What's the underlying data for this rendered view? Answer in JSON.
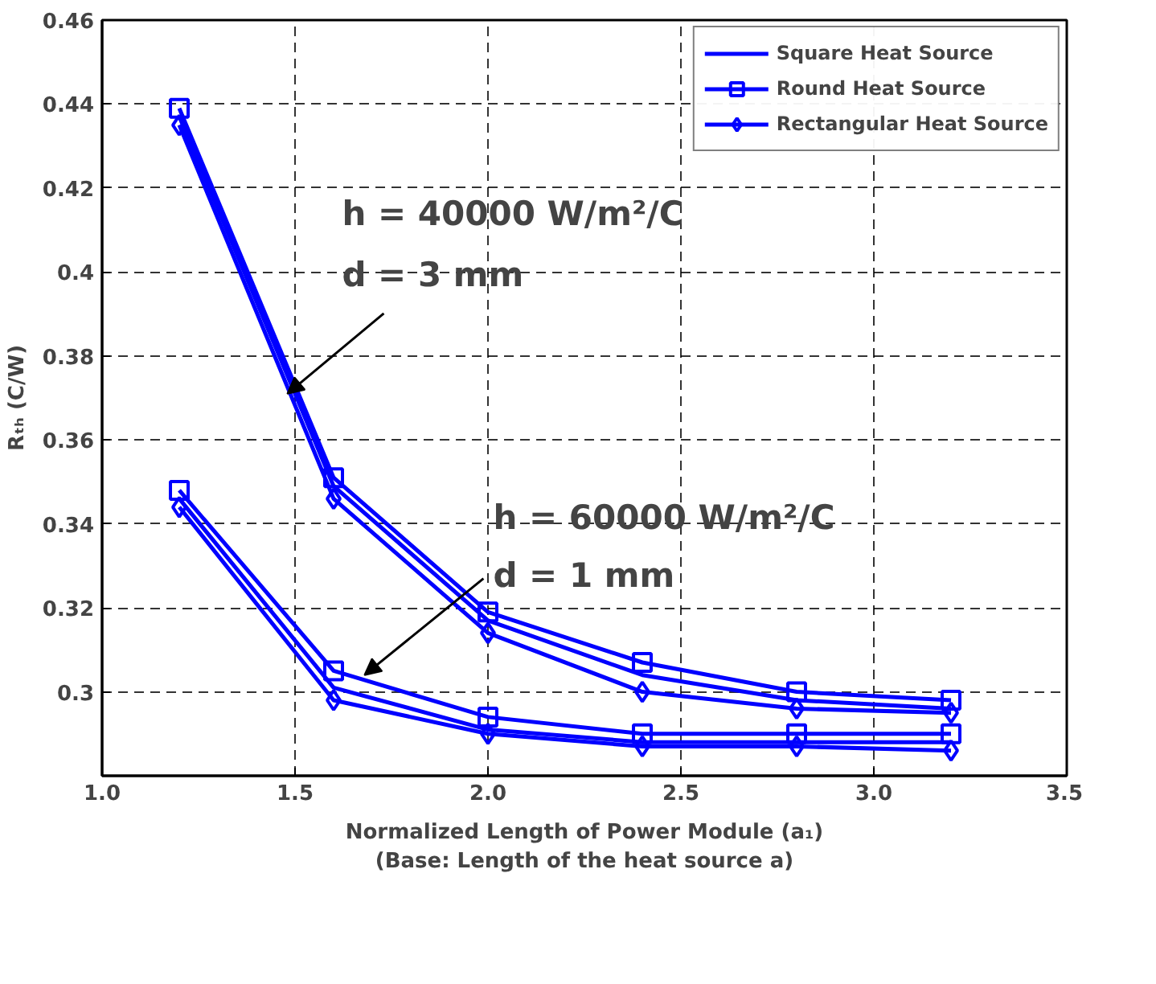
{
  "chart_data": {
    "type": "line",
    "xlabel": "Normalized Length of Power Module (a₁)\n(Base: Length of the heat source a)",
    "ylabel": "Rₜₕ (C/W)",
    "x": [
      1.2,
      1.6,
      2.0,
      2.4,
      2.8,
      3.2
    ],
    "series": [
      {
        "name": "Square Heat Source",
        "color": "#0000ff",
        "marker": "none",
        "values": [
          0.437,
          0.349,
          0.317,
          0.304,
          0.298,
          0.296
        ]
      },
      {
        "name": "Round Heat Source",
        "color": "#0000ff",
        "marker": "square",
        "values": [
          0.439,
          0.351,
          0.319,
          0.307,
          0.3,
          0.298
        ]
      },
      {
        "name": "Rectangular Heat Source",
        "color": "#0000ff",
        "marker": "diamond",
        "values": [
          0.435,
          0.346,
          0.314,
          0.3,
          0.296,
          0.295
        ]
      },
      {
        "color": "#0000ff",
        "marker": "none",
        "values": [
          0.346,
          0.301,
          0.291,
          0.288,
          0.288,
          0.288
        ]
      },
      {
        "color": "#0000ff",
        "marker": "square",
        "values": [
          0.348,
          0.305,
          0.294,
          0.29,
          0.29,
          0.29
        ]
      },
      {
        "color": "#0000ff",
        "marker": "diamond",
        "values": [
          0.344,
          0.298,
          0.29,
          0.287,
          0.287,
          0.286
        ]
      }
    ],
    "annotations": [
      {
        "text": "h = 40000 W/m²/C\nd = 3 mm",
        "x": 1.48,
        "y": 0.371
      },
      {
        "text": "h = 60000 W/m²/C\nd = 1 mm",
        "x": 1.68,
        "y": 0.304
      }
    ],
    "xlim": [
      1.0,
      3.5
    ],
    "ylim": [
      0.28,
      0.46
    ],
    "xticks": [
      {
        "value": 1.0,
        "label": "1.0"
      },
      1.5,
      {
        "value": 2.0,
        "label": "2.0"
      },
      2.5,
      {
        "value": 3.0,
        "label": "3.0"
      },
      3.5
    ],
    "yticks": [
      0.3,
      0.32,
      0.34,
      0.36,
      0.38,
      0.4,
      0.42,
      0.44,
      0.46
    ],
    "grid": true,
    "legend": "top right",
    "line_style": "solid"
  }
}
